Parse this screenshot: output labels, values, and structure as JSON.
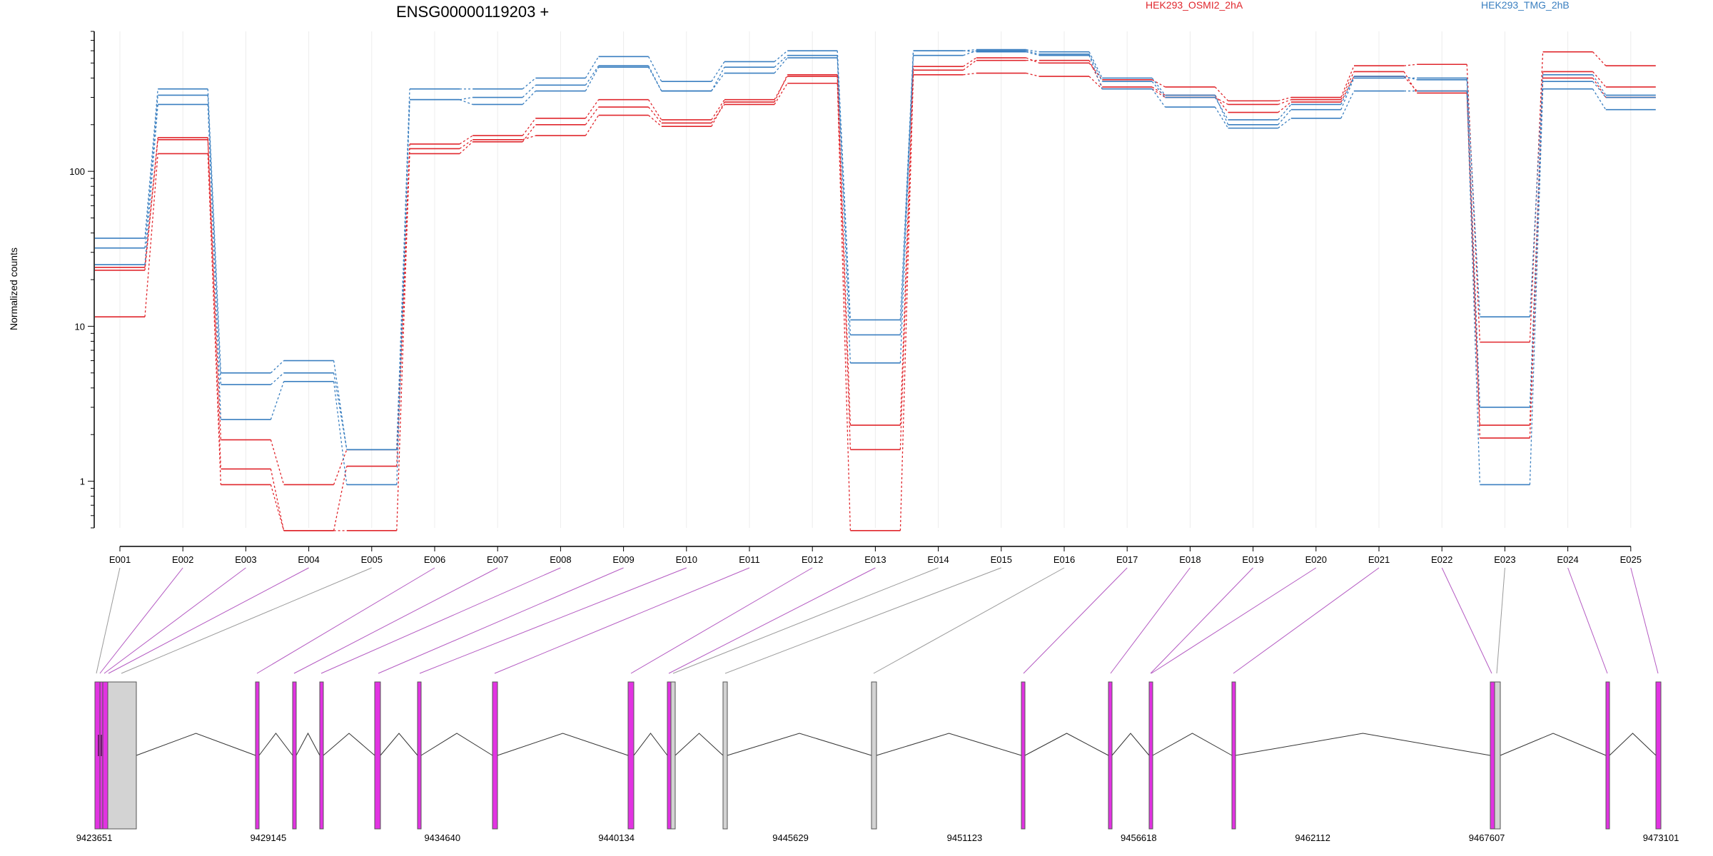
{
  "chart_data": {
    "type": "line",
    "title": "ENSG00000119203 +",
    "ylabel": "Normalized counts",
    "yscale": "log",
    "ylim": [
      0.5,
      800
    ],
    "yticks": [
      1,
      10,
      100
    ],
    "ytick_labels": [
      "1",
      "10",
      "100"
    ],
    "grid": true,
    "legend_placement": "top",
    "categories": [
      "E001",
      "E002",
      "E003",
      "E004",
      "E005",
      "E006",
      "E007",
      "E008",
      "E009",
      "E010",
      "E011",
      "E012",
      "E013",
      "E014",
      "E015",
      "E016",
      "E017",
      "E018",
      "E019",
      "E020",
      "E021",
      "E022",
      "E023",
      "E024",
      "E025"
    ],
    "series": [
      {
        "name": "HEK293_OSMI2_2hA",
        "color": "#e0262c",
        "replicates": [
          [
            24,
            165,
            1.85,
            0.95,
            1.6,
            150,
            170,
            220,
            290,
            215,
            290,
            410,
            2.3,
            475,
            540,
            500,
            390,
            350,
            285,
            300,
            480,
            490,
            7.9,
            590,
            480
          ],
          [
            11.5,
            130,
            0.95,
            0.48,
            1.25,
            130,
            155,
            200,
            260,
            205,
            270,
            370,
            0.48,
            420,
            430,
            410,
            340,
            300,
            270,
            290,
            440,
            320,
            2.3,
            440,
            350
          ],
          [
            23,
            160,
            1.2,
            0.48,
            0.48,
            140,
            160,
            170,
            230,
            195,
            280,
            420,
            1.6,
            450,
            520,
            520,
            350,
            310,
            240,
            280,
            410,
            330,
            1.9,
            400,
            300
          ]
        ]
      },
      {
        "name": "HEK293_TMG_2hB",
        "color": "#3a7fc0",
        "replicates": [
          [
            37,
            340,
            5.0,
            6.0,
            1.6,
            340,
            340,
            400,
            550,
            380,
            510,
            600,
            11,
            600,
            610,
            590,
            400,
            310,
            200,
            250,
            400,
            400,
            11.5,
            420,
            310
          ],
          [
            32,
            310,
            4.2,
            5.0,
            1.6,
            290,
            300,
            360,
            480,
            330,
            470,
            560,
            8.8,
            560,
            600,
            570,
            380,
            300,
            215,
            270,
            410,
            390,
            3.0,
            380,
            300
          ],
          [
            25,
            270,
            2.5,
            4.4,
            0.95,
            290,
            270,
            330,
            470,
            330,
            430,
            540,
            5.8,
            600,
            590,
            560,
            340,
            260,
            190,
            220,
            330,
            330,
            0.95,
            340,
            250
          ]
        ]
      }
    ],
    "gene_model": {
      "coordinate_labels": [
        "9423651",
        "9429145",
        "9434640",
        "9440134",
        "9445629",
        "9451123",
        "9456618",
        "9462112",
        "9467607",
        "9473101"
      ],
      "range": [
        9423651,
        9473101
      ],
      "exon_color": "#e233e2",
      "other_color": "#d3d3d3"
    }
  }
}
